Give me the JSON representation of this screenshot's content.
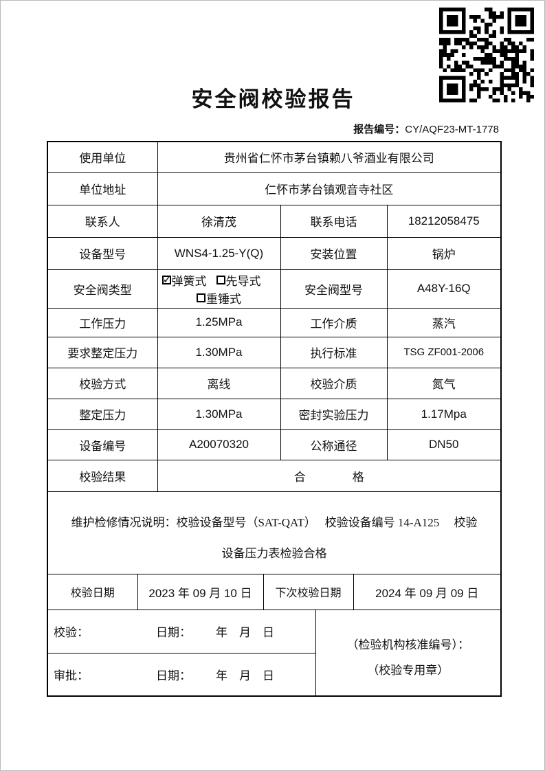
{
  "header": {
    "title": "安全阀校验报告",
    "report_no_label": "报告编号：",
    "report_no_value": "CY/AQF23-MT-1778",
    "qr_icon": "qr-code"
  },
  "info": {
    "r1": {
      "l": "使用单位",
      "v": "贵州省仁怀市茅台镇赖八爷酒业有限公司"
    },
    "r2": {
      "l": "单位地址",
      "v": "仁怀市茅台镇观音寺社区"
    },
    "r3": {
      "l1": "联系人",
      "v1": "徐清茂",
      "l2": "联系电话",
      "v2": "18212058475"
    },
    "r4": {
      "l1": "设备型号",
      "v1": "WNS4-1.25-Y(Q)",
      "l2": "安装位置",
      "v2": "锅炉"
    },
    "r5": {
      "l1": "安全阀类型",
      "valve_options": [
        {
          "label": "弹簧式",
          "checked": true
        },
        {
          "label": "先导式",
          "checked": false
        },
        {
          "label": "重锤式",
          "checked": false
        }
      ],
      "l2": "安全阀型号",
      "v2": "A48Y-16Q"
    },
    "r6": {
      "l1": "工作压力",
      "v1": "1.25MPa",
      "l2": "工作介质",
      "v2": "蒸汽"
    },
    "r7": {
      "l1": "要求整定压力",
      "v1": "1.30MPa",
      "l2": "执行标准",
      "v2": "TSG ZF001-2006"
    },
    "r8": {
      "l1": "校验方式",
      "v1": "离线",
      "l2": "校验介质",
      "v2": "氮气"
    },
    "r9": {
      "l1": "整定压力",
      "v1": "1.30MPa",
      "l2": "密封实验压力",
      "v2": "1.17Mpa"
    },
    "r10": {
      "l1": "设备编号",
      "v1": "A20070320",
      "l2": "公称通径",
      "v2": "DN50"
    },
    "r11": {
      "l": "校验结果",
      "v": "合　　　　格"
    }
  },
  "maintenance": {
    "line1": "维护检修情况说明：校验设备型号（SAT-QAT）　 校验设备编号 14-A125　 校验",
    "line2": "设备压力表检验合格"
  },
  "dates": {
    "l1": "校验日期",
    "v1": "2023 年 09 月 10 日",
    "l2": "下次校验日期",
    "v2": "2024 年 09 月 09 日"
  },
  "signoff": {
    "verify_label": "校验：",
    "verify_date_label": "日期：",
    "verify_ymd": "年　月　日",
    "approve_label": "审批：",
    "approve_date_label": "日期：",
    "approve_ymd": "年　月　日",
    "stamp_line1": "（检验机构核准编号）：",
    "stamp_line2": "（校验专用章）"
  },
  "colors": {
    "ink": "#111111",
    "border": "#000000",
    "page_frame": "#b9b9b9"
  }
}
